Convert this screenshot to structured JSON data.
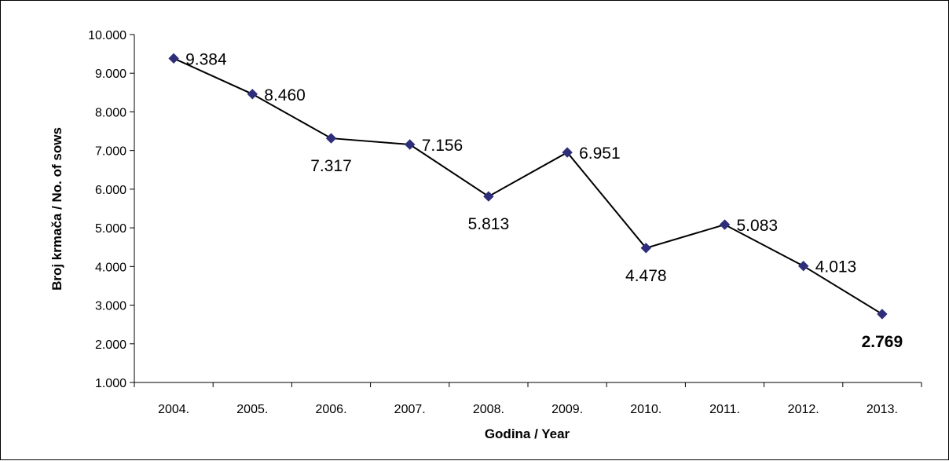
{
  "chart_data": {
    "type": "line",
    "title": "",
    "xlabel": "Godina / Year",
    "ylabel": "Broj krmača / No. of sows",
    "categories": [
      "2004.",
      "2005.",
      "2006.",
      "2007.",
      "2008.",
      "2009.",
      "2010.",
      "2011.",
      "2012.",
      "2013."
    ],
    "values": [
      9384,
      8460,
      7317,
      7156,
      5813,
      6951,
      4478,
      5083,
      4013,
      2769
    ],
    "data_labels": [
      "9.384",
      "8.460",
      "7.317",
      "7.156",
      "5.813",
      "6.951",
      "4.478",
      "5.083",
      "4.013",
      "2.769"
    ],
    "highlighted_label_index": 9,
    "ylim": [
      1000,
      10000
    ],
    "ytick_values": [
      1000,
      2000,
      3000,
      4000,
      5000,
      6000,
      7000,
      8000,
      9000,
      10000
    ],
    "ytick_labels": [
      "1.000",
      "2.000",
      "3.000",
      "4.000",
      "5.000",
      "6.000",
      "7.000",
      "8.000",
      "9.000",
      "10.000"
    ],
    "grid": false,
    "legend": "none",
    "marker": "diamond",
    "colors": {
      "line": "#000000",
      "marker": "#2e2e7a",
      "axis": "#000000"
    }
  }
}
